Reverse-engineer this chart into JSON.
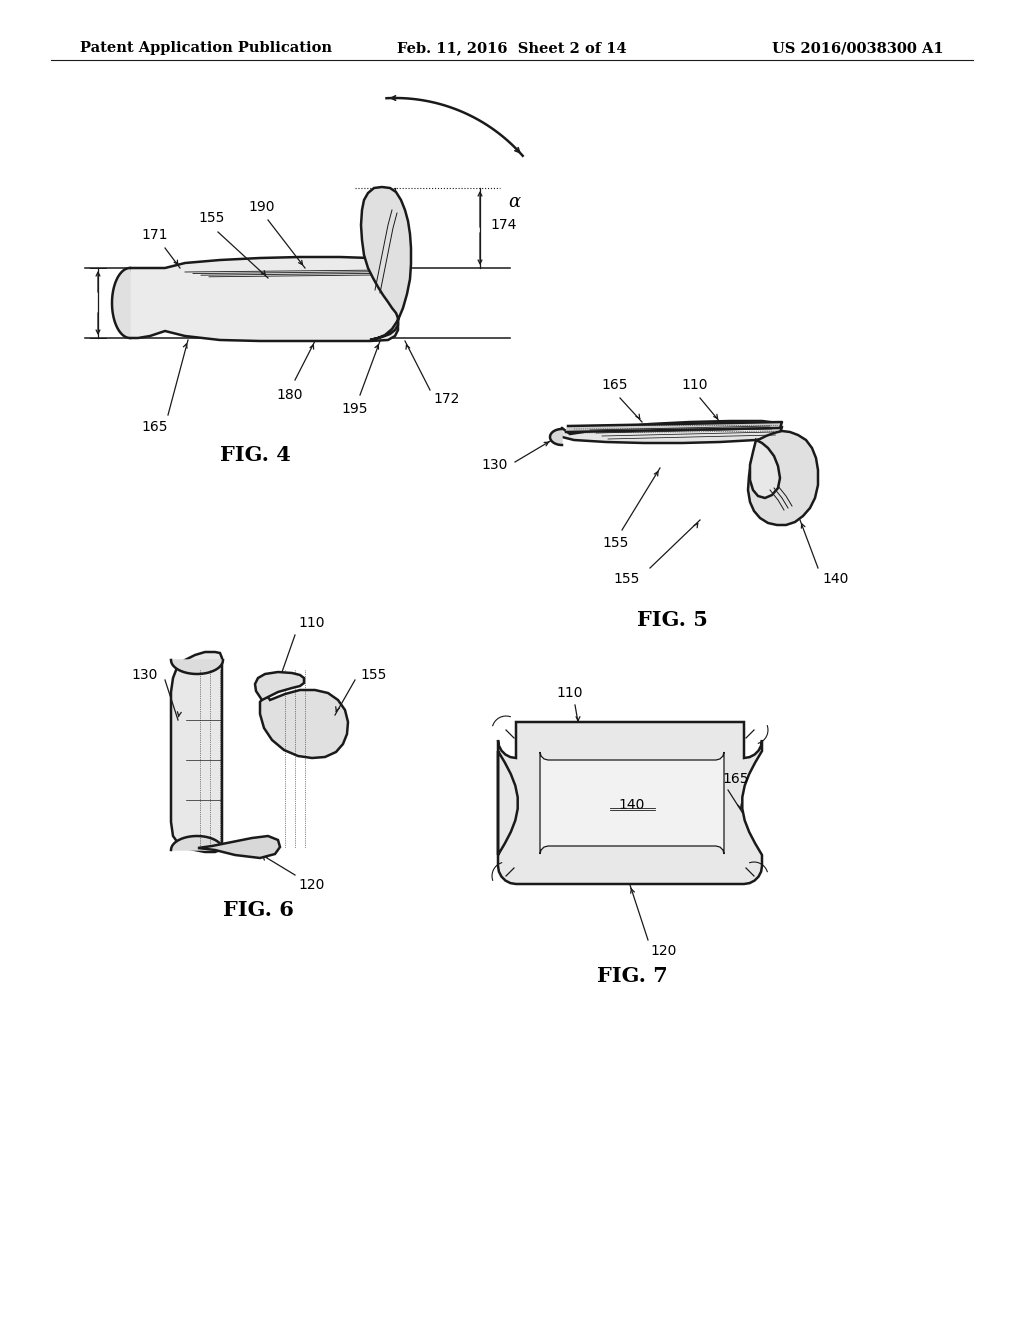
{
  "background_color": "#ffffff",
  "header_left": "Patent Application Publication",
  "header_center": "Feb. 11, 2016  Sheet 2 of 14",
  "header_right": "US 2016/0038300 A1",
  "fig4_label": "FIG. 4",
  "fig5_label": "FIG. 5",
  "fig6_label": "FIG. 6",
  "fig7_label": "FIG. 7",
  "header_fontsize": 10.5,
  "fig_label_fontsize": 15,
  "annotation_fontsize": 10,
  "line_color": "#1a1a1a"
}
